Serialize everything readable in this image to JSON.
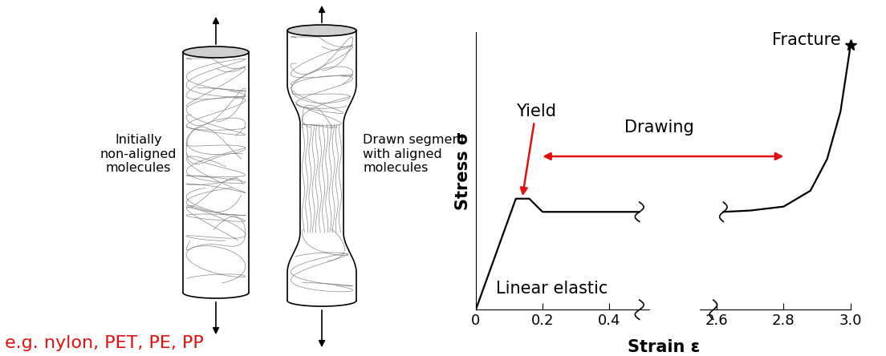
{
  "diagram": {
    "left_label": "Initially\nnon-aligned\nmolecules",
    "right_label": "Drawn segment\nwith aligned\nmolecules",
    "examples": "e.g. nylon, PET, PE, PP"
  },
  "chart_data": {
    "type": "line",
    "xlabel": "Strain ε",
    "ylabel": "Stress σ",
    "color": "black",
    "ylim": [
      0,
      105
    ],
    "yticks": [],
    "tick_labels": "x",
    "annotations": {
      "yield": "Yield",
      "drawing": "Drawing",
      "elastic": "Linear elastic",
      "fracture": "Fracture"
    },
    "segments": [
      {
        "x": [
          0,
          0.12,
          0.16,
          0.2,
          0.3,
          0.4,
          0.49
        ],
        "values": [
          0,
          42,
          42,
          37,
          37,
          37,
          37
        ],
        "xlim": [
          0,
          0.52
        ],
        "xticks": [
          0,
          0.2,
          0.4
        ]
      },
      {
        "x": [
          2.62,
          2.7,
          2.8,
          2.88,
          2.93,
          2.97,
          3.0
        ],
        "values": [
          37,
          37.5,
          39,
          45,
          57,
          75,
          100
        ],
        "xlim": [
          2.55,
          3.0
        ],
        "xticks": [
          2.6,
          2.8,
          {
            "value": 3,
            "label": "3.0"
          }
        ]
      }
    ]
  }
}
